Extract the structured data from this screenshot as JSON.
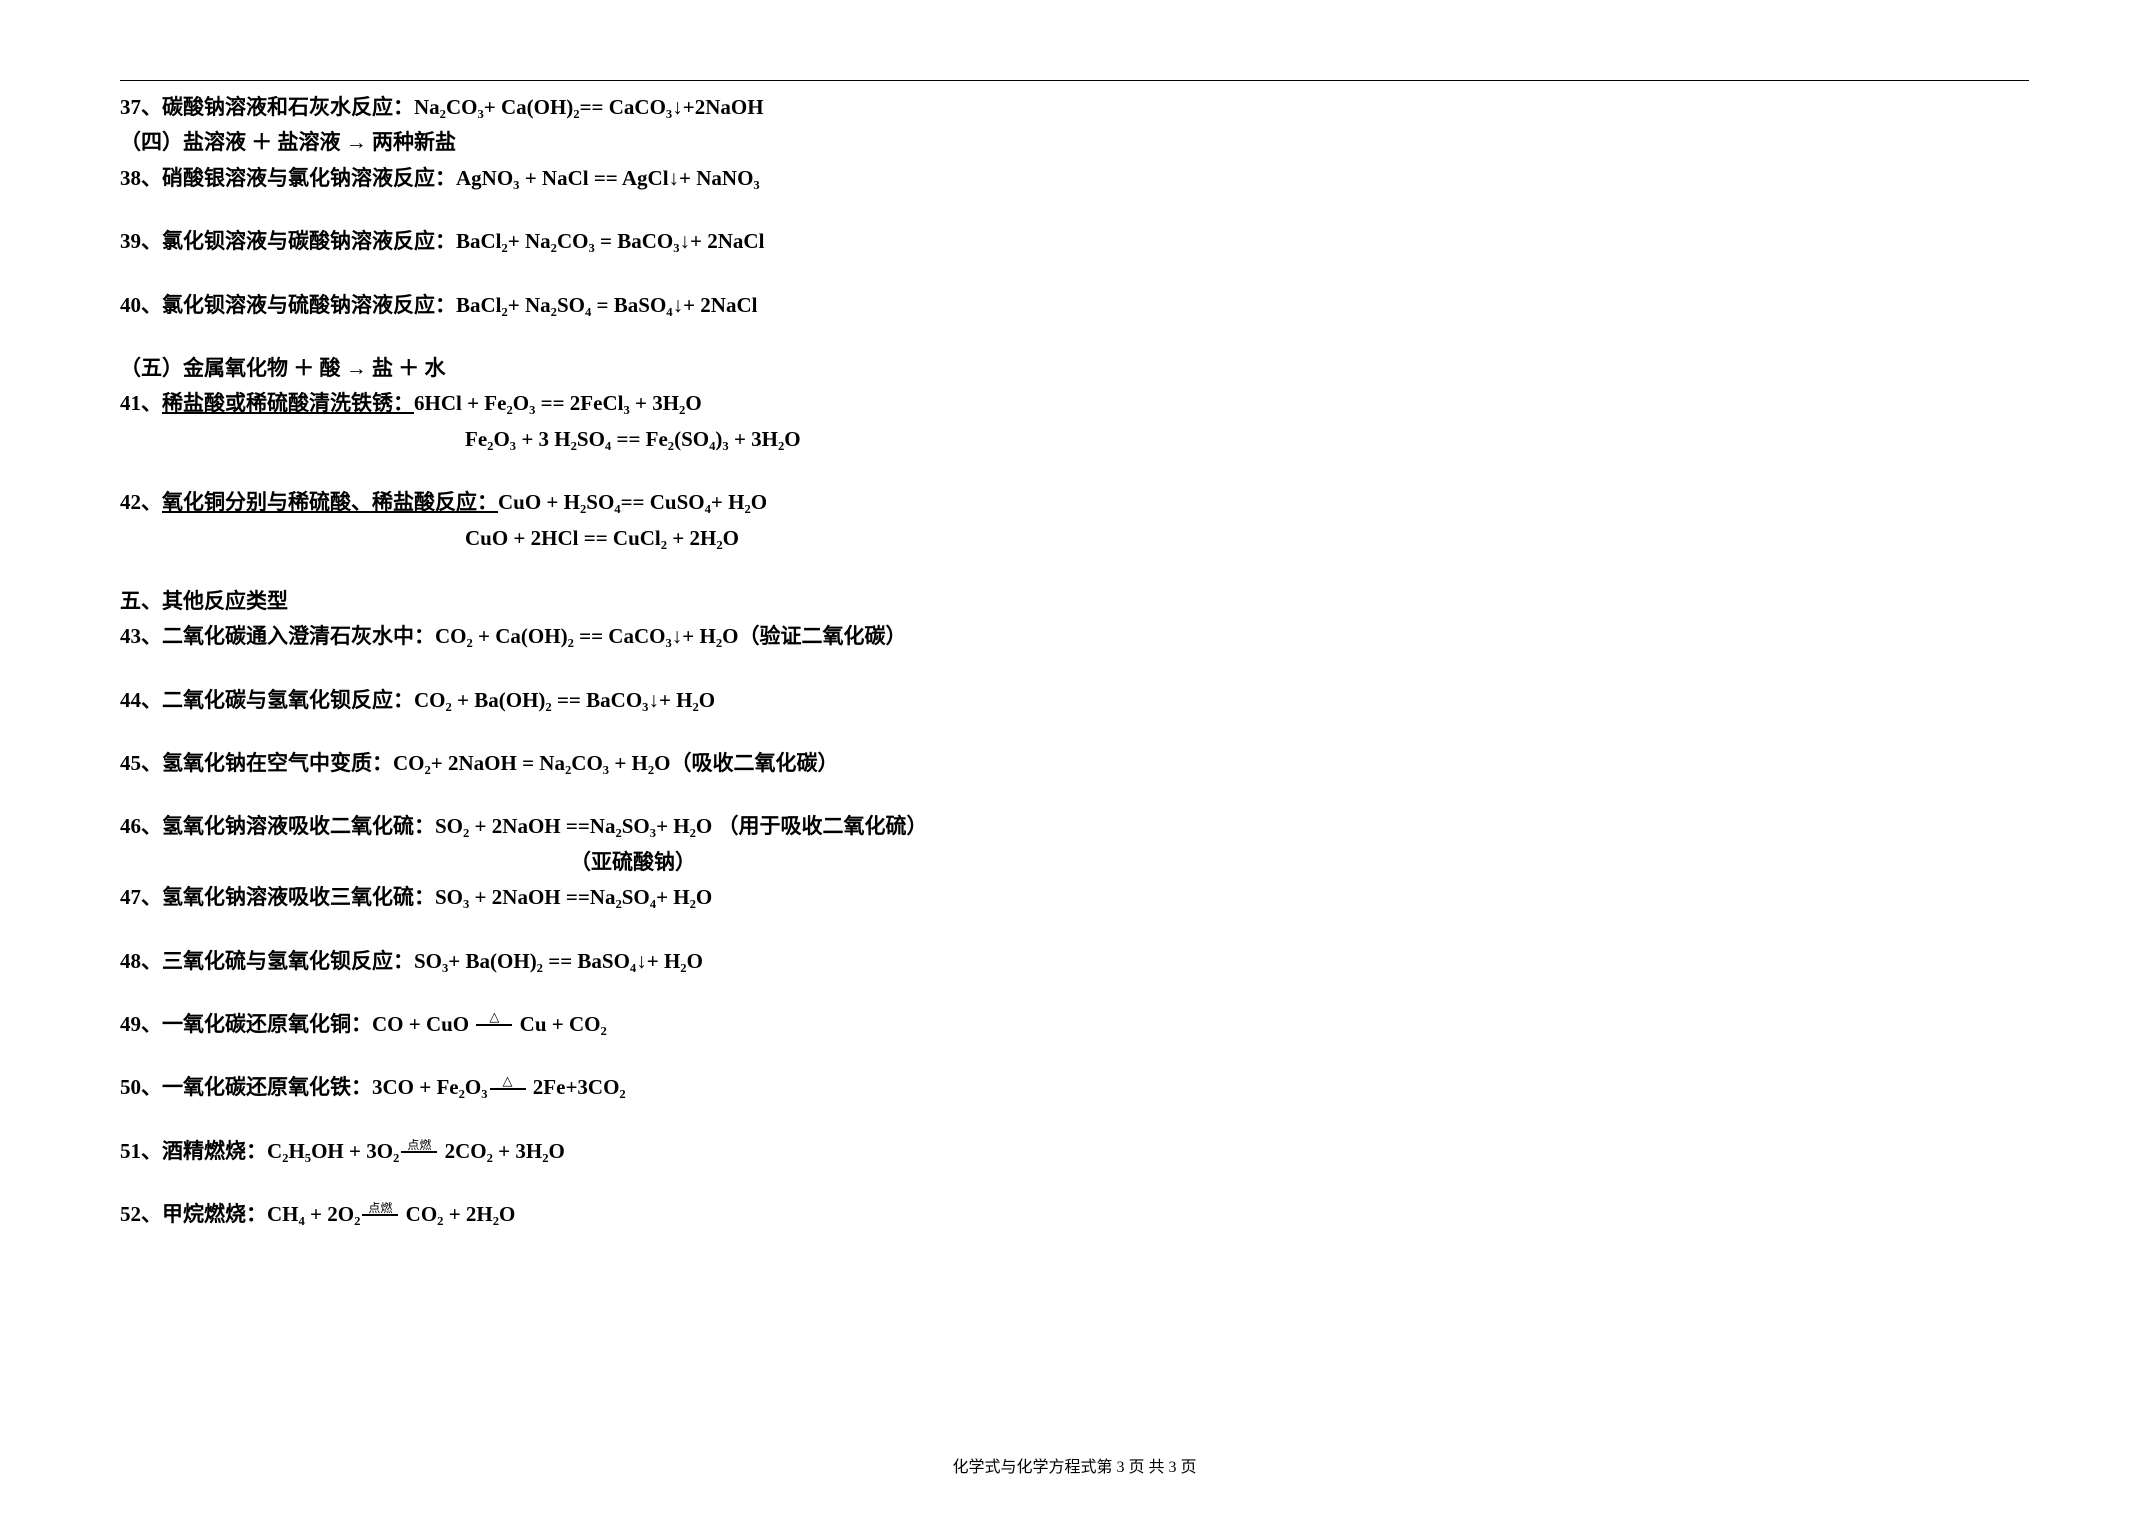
{
  "items": {
    "i37": "37、碳酸钠溶液和石灰水反应：Na₂CO₃+ Ca(OH)₂== CaCO₃↓+2NaOH",
    "sec4": "（四）盐溶液 ＋ 盐溶液 → 两种新盐",
    "i38": "38、硝酸银溶液与氯化钠溶液反应：AgNO₃ + NaCl == AgCl↓+ NaNO₃",
    "i39": "39、氯化钡溶液与碳酸钠溶液反应：BaCl₂+ Na₂CO₃ = BaCO₃↓+ 2NaCl",
    "i40": "40、氯化钡溶液与硫酸钠溶液反应：BaCl₂+ Na₂SO₄ = BaSO₄↓+ 2NaCl",
    "sec5": "（五）金属氧化物 ＋ 酸 → 盐 ＋ 水",
    "i41_prefix": "41、",
    "i41_underline": "稀盐酸或稀硫酸清洗铁锈：",
    "i41_eq1": "6HCl + Fe₂O₃ == 2FeCl₃ + 3H₂O",
    "i41_eq2": "Fe₂O₃ + 3 H₂SO₄ == Fe₂(SO₄)₃ + 3H₂O",
    "i42_prefix": "42、",
    "i42_underline": "氧化铜分别与稀硫酸、稀盐酸反应：",
    "i42_eq1": "CuO + H₂SO₄== CuSO₄+ H₂O",
    "i42_eq2": "CuO + 2HCl == CuCl₂ + 2H₂O",
    "sec_other": "五、其他反应类型",
    "i43": "43、二氧化碳通入澄清石灰水中：CO₂ + Ca(OH)₂ == CaCO₃↓+ H₂O（验证二氧化碳）",
    "i44": "44、二氧化碳与氢氧化钡反应：CO₂ + Ba(OH)₂ == BaCO₃↓+ H₂O",
    "i45": "45、氢氧化钠在空气中变质：CO₂+ 2NaOH = Na₂CO₃ + H₂O（吸收二氧化碳）",
    "i46": "46、氢氧化钠溶液吸收二氧化硫：SO₂ + 2NaOH ==Na₂SO₃+ H₂O （用于吸收二氧化硫）",
    "i46_note": "（亚硫酸钠）",
    "i47": "47、氢氧化钠溶液吸收三氧化硫：SO₃ + 2NaOH ==Na₂SO₄+ H₂O",
    "i48": "48、三氧化硫与氢氧化钡反应：SO₃+ Ba(OH)₂ == BaSO₄↓+ H₂O",
    "i49_pre": "49、一氧化碳还原氧化铜：CO + CuO ",
    "i49_post": " Cu + CO₂",
    "i50_pre": "50、一氧化碳还原氧化铁：3CO + Fe₂O₃",
    "i50_post": " 2Fe+3CO₂",
    "i51_pre": "51、酒精燃烧：C₂H₅OH + 3O₂",
    "i51_post": "  2CO₂ + 3H₂O",
    "i52_pre": "52、甲烷燃烧：CH₄ + 2O₂",
    "i52_post": "  CO₂ + 2H₂O"
  },
  "footer": "化学式与化学方程式第 3 页 共 3 页"
}
